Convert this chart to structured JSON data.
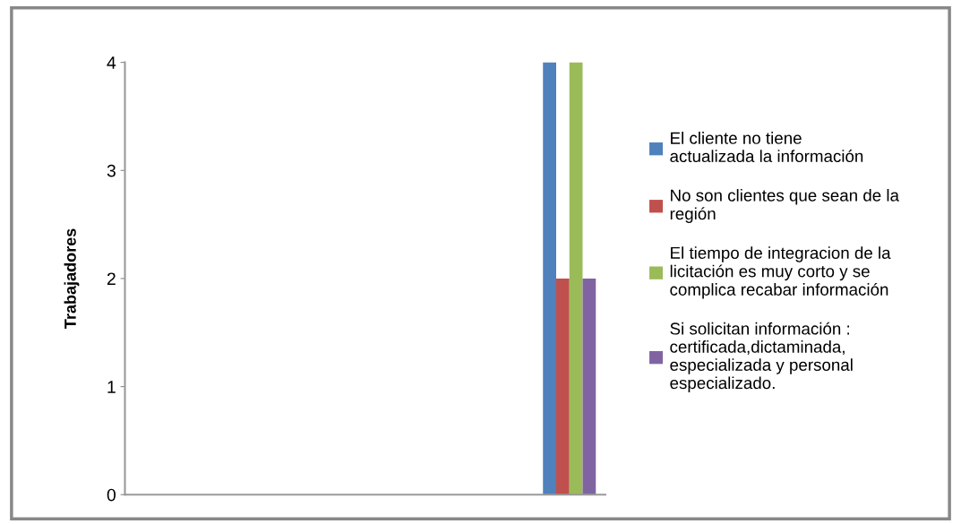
{
  "chart_data": {
    "type": "bar",
    "ylabel": "Trabajadores",
    "categories": [
      null,
      null
    ],
    "ylim": [
      0,
      4
    ],
    "yticks": [
      0,
      1,
      2,
      3,
      4
    ],
    "grid": false,
    "legend": "right",
    "series": [
      {
        "name": "El cliente no tiene actualizada la información",
        "color": "#4f81bd",
        "values": [
          null,
          4
        ]
      },
      {
        "name": "No son clientes que sean de la región",
        "color": "#c0504d",
        "values": [
          null,
          2
        ]
      },
      {
        "name": "El tiempo de integracion de la licitación es muy corto y se complica recabar información",
        "color": "#9bbb59",
        "values": [
          null,
          4
        ]
      },
      {
        "name": "Si solicitan información : certificada,dictaminada, especializada y personal especializado.",
        "color": "#8064a2",
        "values": [
          null,
          2
        ]
      }
    ]
  }
}
